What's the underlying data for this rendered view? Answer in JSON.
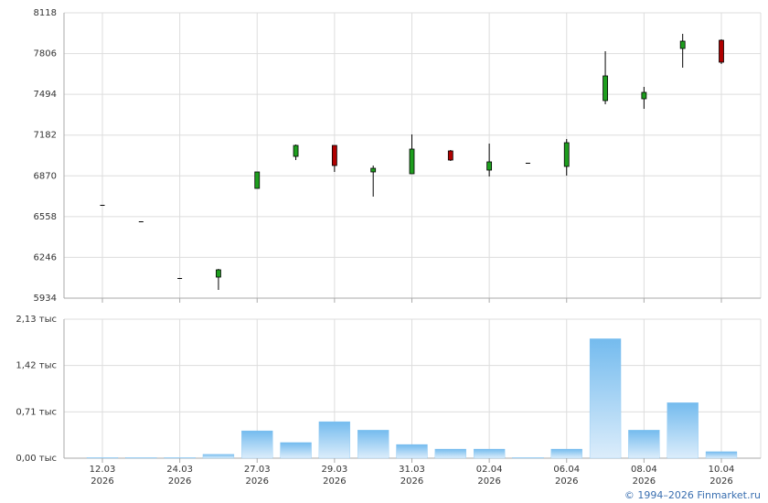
{
  "chart_data": [
    {
      "type": "candlestick",
      "open": [
        6648,
        6522,
        6088,
        6095,
        6774,
        7019,
        7103,
        6900,
        6886,
        7061,
        6914,
        6970,
        6942,
        7446,
        7460,
        7845,
        7908
      ],
      "high": [
        6648,
        6522,
        6088,
        6158,
        6900,
        7110,
        7103,
        6949,
        7187,
        7068,
        7117,
        6970,
        7152,
        7824,
        7551,
        7957,
        7915
      ],
      "low": [
        6648,
        6522,
        6088,
        5997,
        6774,
        6991,
        6900,
        6711,
        6886,
        6984,
        6865,
        6970,
        6872,
        7418,
        7383,
        7698,
        7726
      ],
      "close": [
        6648,
        6522,
        6088,
        6151,
        6900,
        7103,
        6949,
        6928,
        7075,
        6991,
        6977,
        6970,
        7124,
        7635,
        7509,
        7901,
        7740
      ],
      "up_color": "#1e9e1e",
      "down_color": "#b00000",
      "ylim": [
        5934,
        8118
      ],
      "yticks": [
        5934,
        6246,
        6558,
        6870,
        7182,
        7494,
        7806,
        8118
      ],
      "grid": true
    },
    {
      "type": "bar",
      "categories": [
        [
          "12.03",
          "2026"
        ],
        null,
        [
          "24.03",
          "2026"
        ],
        null,
        [
          "27.03",
          "2026"
        ],
        null,
        [
          "29.03",
          "2026"
        ],
        null,
        [
          "31.03",
          "2026"
        ],
        null,
        [
          "02.04",
          "2026"
        ],
        null,
        [
          "06.04",
          "2026"
        ],
        null,
        [
          "08.04",
          "2026"
        ],
        null,
        [
          "10.04",
          "2026"
        ]
      ],
      "values": [
        0.01,
        0.01,
        0.01,
        0.06,
        0.42,
        0.24,
        0.56,
        0.43,
        0.21,
        0.14,
        0.14,
        0.01,
        0.14,
        1.83,
        0.43,
        0.85,
        0.1
      ],
      "color": "#7cc0f0",
      "ylim": [
        0,
        2.13
      ],
      "yticks": [
        {
          "value": 0,
          "label": "0,00 тыс"
        },
        {
          "value": 0.71,
          "label": "0,71 тыс"
        },
        {
          "value": 1.42,
          "label": "1,42 тыс"
        },
        {
          "value": 2.13,
          "label": "2,13 тыс"
        }
      ],
      "grid": true
    }
  ],
  "credit": "© 1994–2026 Finmarket.ru"
}
